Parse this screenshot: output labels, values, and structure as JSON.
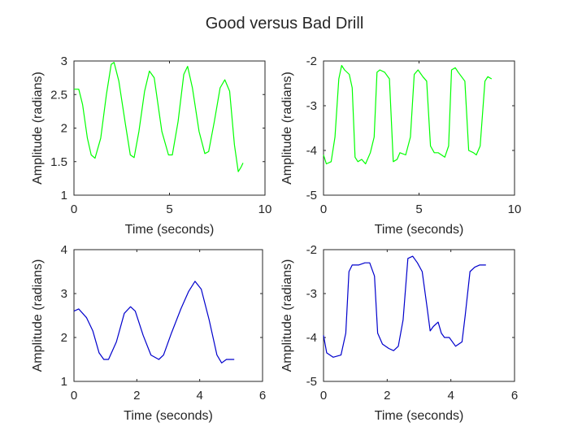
{
  "figure": {
    "title": "Good versus Bad Drill"
  },
  "chart_data": [
    {
      "type": "line",
      "xlabel": "Time (seconds)",
      "ylabel": "Amplitude (radians)",
      "xlim": [
        0,
        10
      ],
      "ylim": [
        1,
        3
      ],
      "xticks": [
        0,
        5,
        10
      ],
      "yticks": [
        1,
        1.5,
        2,
        2.5,
        3
      ],
      "color": "#00ff00",
      "series": [
        {
          "x": [
            0,
            0.25,
            0.45,
            0.7,
            0.9,
            1.1,
            1.4,
            1.7,
            1.95,
            2.1,
            2.35,
            2.7,
            2.95,
            3.15,
            3.4,
            3.7,
            3.95,
            4.2,
            4.6,
            4.95,
            5.15,
            5.45,
            5.75,
            5.95,
            6.2,
            6.55,
            6.85,
            7.05,
            7.35,
            7.65,
            7.9,
            8.15,
            8.4,
            8.6,
            8.75,
            8.85
          ],
          "y": [
            2.58,
            2.58,
            2.35,
            1.85,
            1.6,
            1.55,
            1.85,
            2.5,
            2.95,
            2.98,
            2.7,
            2.05,
            1.6,
            1.56,
            1.95,
            2.55,
            2.85,
            2.75,
            1.95,
            1.6,
            1.6,
            2.1,
            2.8,
            2.92,
            2.6,
            1.95,
            1.62,
            1.65,
            2.1,
            2.6,
            2.72,
            2.55,
            1.75,
            1.35,
            1.42,
            1.48
          ]
        }
      ]
    },
    {
      "type": "line",
      "xlabel": "Time (seconds)",
      "ylabel": "Amplitude (radians)",
      "xlim": [
        0,
        10
      ],
      "ylim": [
        -5,
        -2
      ],
      "xticks": [
        0,
        5,
        10
      ],
      "yticks": [
        -5,
        -4,
        -3,
        -2
      ],
      "color": "#00ff00",
      "series": [
        {
          "x": [
            0,
            0.15,
            0.4,
            0.6,
            0.8,
            0.95,
            1.1,
            1.35,
            1.5,
            1.65,
            1.8,
            2.0,
            2.2,
            2.45,
            2.65,
            2.8,
            2.95,
            3.2,
            3.45,
            3.65,
            3.85,
            4.0,
            4.3,
            4.55,
            4.75,
            4.95,
            5.2,
            5.4,
            5.6,
            5.8,
            6.0,
            6.35,
            6.55,
            6.7,
            6.9,
            7.05,
            7.4,
            7.6,
            7.85,
            8.0,
            8.2,
            8.45,
            8.6,
            8.8
          ],
          "y": [
            -4.1,
            -4.3,
            -4.25,
            -3.7,
            -2.4,
            -2.1,
            -2.2,
            -2.3,
            -2.6,
            -4.15,
            -4.25,
            -4.2,
            -4.3,
            -4.05,
            -3.7,
            -2.25,
            -2.2,
            -2.25,
            -2.4,
            -4.25,
            -4.2,
            -4.05,
            -4.1,
            -3.7,
            -2.3,
            -2.2,
            -2.35,
            -2.45,
            -3.9,
            -4.05,
            -4.05,
            -4.15,
            -3.9,
            -2.2,
            -2.15,
            -2.25,
            -2.45,
            -4.0,
            -4.05,
            -4.1,
            -3.9,
            -2.45,
            -2.35,
            -2.4
          ]
        }
      ]
    },
    {
      "type": "line",
      "xlabel": "Time (seconds)",
      "ylabel": "Amplitude (radians)",
      "xlim": [
        0,
        6
      ],
      "ylim": [
        1,
        4
      ],
      "xticks": [
        0,
        2,
        4,
        6
      ],
      "yticks": [
        1,
        2,
        3,
        4
      ],
      "color": "#0000cc",
      "series": [
        {
          "x": [
            0,
            0.15,
            0.4,
            0.6,
            0.8,
            0.95,
            1.1,
            1.35,
            1.6,
            1.8,
            1.95,
            2.2,
            2.45,
            2.7,
            2.85,
            3.1,
            3.4,
            3.65,
            3.85,
            4.05,
            4.3,
            4.55,
            4.7,
            4.85,
            5.1
          ],
          "y": [
            2.6,
            2.65,
            2.45,
            2.15,
            1.65,
            1.5,
            1.5,
            1.9,
            2.55,
            2.7,
            2.6,
            2.05,
            1.6,
            1.5,
            1.6,
            2.1,
            2.65,
            3.05,
            3.28,
            3.1,
            2.4,
            1.6,
            1.42,
            1.5,
            1.5
          ]
        }
      ]
    },
    {
      "type": "line",
      "xlabel": "Time (seconds)",
      "ylabel": "Amplitude (radians)",
      "xlim": [
        0,
        6
      ],
      "ylim": [
        -5,
        -2
      ],
      "xticks": [
        0,
        2,
        4,
        6
      ],
      "yticks": [
        -5,
        -4,
        -3,
        -2
      ],
      "color": "#0000cc",
      "series": [
        {
          "x": [
            0,
            0.1,
            0.3,
            0.55,
            0.7,
            0.8,
            0.9,
            1.1,
            1.3,
            1.45,
            1.6,
            1.7,
            1.85,
            2.05,
            2.2,
            2.35,
            2.5,
            2.65,
            2.8,
            2.95,
            3.1,
            3.25,
            3.35,
            3.45,
            3.6,
            3.7,
            3.8,
            3.95,
            4.15,
            4.35,
            4.45,
            4.6,
            4.75,
            4.9,
            5.1
          ],
          "y": [
            -3.95,
            -4.35,
            -4.45,
            -4.4,
            -3.9,
            -2.5,
            -2.35,
            -2.35,
            -2.3,
            -2.3,
            -2.6,
            -3.9,
            -4.15,
            -4.25,
            -4.3,
            -4.2,
            -3.6,
            -2.2,
            -2.15,
            -2.3,
            -2.5,
            -3.3,
            -3.85,
            -3.75,
            -3.65,
            -3.9,
            -4.0,
            -4.0,
            -4.2,
            -4.1,
            -3.5,
            -2.5,
            -2.4,
            -2.35,
            -2.35
          ]
        }
      ]
    }
  ]
}
